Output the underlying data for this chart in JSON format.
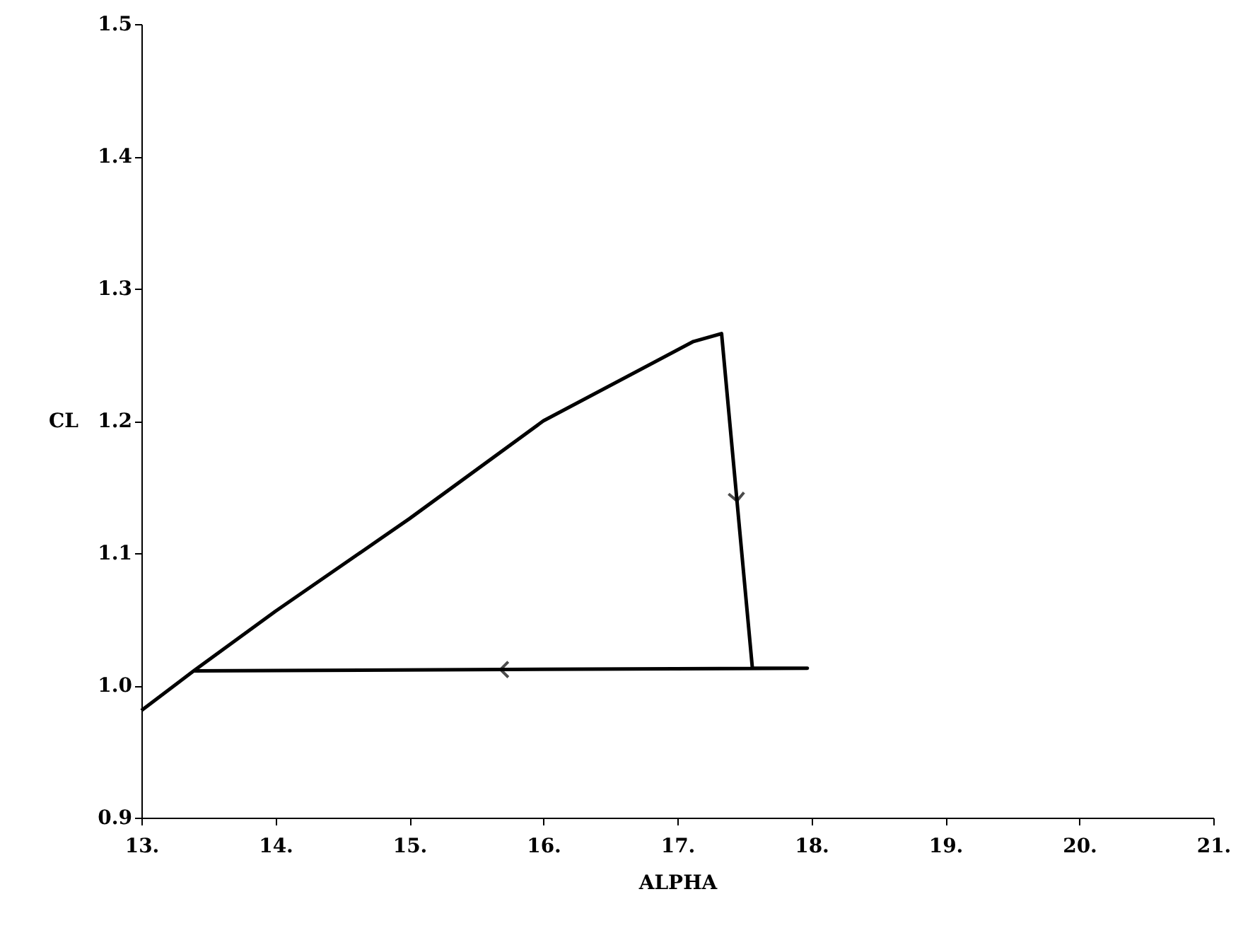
{
  "chart_data": {
    "type": "line",
    "xlabel": "ALPHA",
    "ylabel": "CL",
    "x": [
      13.0,
      13.39,
      14.0,
      15.0,
      16.0,
      17.12,
      17.33,
      17.56,
      17.97,
      13.39
    ],
    "series": [
      {
        "color": "#000000",
        "values": [
          0.981,
          1.011,
          1.056,
          1.126,
          1.2,
          1.26,
          1.266,
          1.013,
          1.013,
          1.011
        ]
      }
    ],
    "xlim": [
      13,
      21
    ],
    "xticks": [
      {
        "value": 13,
        "label": "13."
      },
      {
        "value": 14,
        "label": "14."
      },
      {
        "value": 15,
        "label": "15."
      },
      {
        "value": 16,
        "label": "16."
      },
      {
        "value": 17,
        "label": "17."
      },
      {
        "value": 18,
        "label": "18."
      },
      {
        "value": 19,
        "label": "19."
      },
      {
        "value": 20,
        "label": "20."
      },
      {
        "value": 21,
        "label": "21."
      }
    ],
    "ylim": [
      0.9,
      1.5
    ],
    "yticks": [
      0.9,
      {
        "value": 1.0,
        "label": "1.0"
      },
      1.1,
      1.2,
      1.3,
      1.4,
      1.5
    ],
    "grid": false,
    "marker": "none",
    "line_style": "solid"
  }
}
